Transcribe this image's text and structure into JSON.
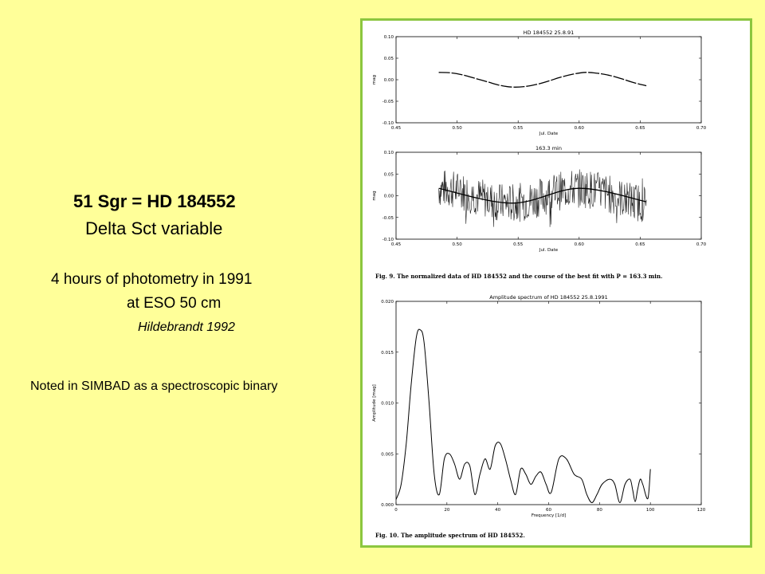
{
  "slide": {
    "title": "51 Sgr = HD 184552",
    "subtitle": "Delta Sct   variable",
    "line1": "4 hours of photometry in 1991",
    "line2": "at ESO 50 cm",
    "line3": "Hildebrandt 1992",
    "line4": "Noted in SIMBAD as a  spectroscopic binary"
  },
  "colors": {
    "background": "#FFFF99",
    "panel_border": "#8CC63F",
    "plot_line": "#000000"
  },
  "figure": {
    "caption1": "Fig. 9. The normalized data of HD 184552 and the course of the best fit with P = 163.3 min.",
    "caption2": "Fig. 10. The amplitude spectrum of HD 184552."
  },
  "chart_data": [
    {
      "type": "line",
      "title": "HD  184552    25.8.91",
      "xlabel": "Jul. Date",
      "ylabel": "mag",
      "xlim": [
        0.45,
        0.7
      ],
      "ylim": [
        -0.1,
        0.1
      ],
      "xticks": [
        "0.45",
        "0.50",
        "0.55",
        "0.60",
        "0.65",
        "0.70"
      ],
      "yticks": [
        "0.10",
        "0.05",
        "0.00",
        "-0.05",
        "-0.10"
      ],
      "series": [
        {
          "x": [
            0.485,
            0.495,
            0.505,
            0.515,
            0.525,
            0.535,
            0.545,
            0.555,
            0.565,
            0.575,
            0.585,
            0.595,
            0.605,
            0.615,
            0.625,
            0.635,
            0.645,
            0.655
          ],
          "y": [
            0.017,
            0.016,
            0.011,
            0.003,
            -0.005,
            -0.013,
            -0.017,
            -0.016,
            -0.011,
            -0.003,
            0.006,
            0.013,
            0.017,
            0.015,
            0.01,
            0.002,
            -0.007,
            -0.014
          ]
        }
      ]
    },
    {
      "type": "line",
      "title": "163.3  min",
      "xlabel": "Jul. Date",
      "ylabel": "mag",
      "xlim": [
        0.45,
        0.7
      ],
      "ylim": [
        -0.1,
        0.1
      ],
      "xticks": [
        "0.45",
        "0.50",
        "0.55",
        "0.60",
        "0.65",
        "0.70"
      ],
      "yticks": [
        "0.10",
        "0.05",
        "0.00",
        "-0.05",
        "-0.10"
      ],
      "series": [
        {
          "name": "data",
          "x_range": [
            0.485,
            0.655
          ],
          "noise_amplitude": 0.045
        },
        {
          "name": "fit",
          "x": [
            0.485,
            0.545,
            0.6,
            0.655
          ],
          "y": [
            0.017,
            -0.017,
            0.017,
            -0.014
          ]
        }
      ]
    },
    {
      "type": "line",
      "title": "Amplitude spectrum of HD 184552   25.8.1991",
      "xlabel": "Frequency [1/d]",
      "ylabel": "Amplitude [mag]",
      "xlim": [
        0,
        120
      ],
      "ylim": [
        0,
        0.02
      ],
      "xticks": [
        "0",
        "20",
        "40",
        "60",
        "80",
        "100",
        "120"
      ],
      "yticks": [
        "0.020",
        "0.015",
        "0.010",
        "0.005",
        "0.000"
      ],
      "series": [
        {
          "x": [
            0,
            2,
            4,
            6,
            8,
            9.5,
            11,
            13,
            15,
            17,
            19,
            21,
            23,
            25,
            27,
            29,
            31,
            33,
            35,
            37,
            39,
            41,
            43,
            45,
            47,
            49,
            51,
            53,
            55,
            57,
            59,
            61,
            64,
            67,
            70,
            73,
            75,
            77,
            79,
            81,
            84,
            86,
            88,
            90,
            92,
            93,
            94,
            95,
            96,
            97,
            99,
            100
          ],
          "y": [
            0.0005,
            0.002,
            0.006,
            0.012,
            0.0165,
            0.0172,
            0.016,
            0.01,
            0.003,
            0.001,
            0.0045,
            0.005,
            0.004,
            0.0025,
            0.004,
            0.0038,
            0.001,
            0.003,
            0.0045,
            0.0035,
            0.0058,
            0.006,
            0.0045,
            0.0025,
            0.001,
            0.0035,
            0.003,
            0.002,
            0.0028,
            0.0032,
            0.002,
            0.0012,
            0.0045,
            0.0045,
            0.003,
            0.0025,
            0.001,
            0.0002,
            0.001,
            0.002,
            0.0025,
            0.002,
            0.0002,
            0.002,
            0.0025,
            0.0015,
            0.0003,
            0.0015,
            0.0025,
            0.002,
            0.0006,
            0.0035
          ]
        }
      ]
    }
  ]
}
